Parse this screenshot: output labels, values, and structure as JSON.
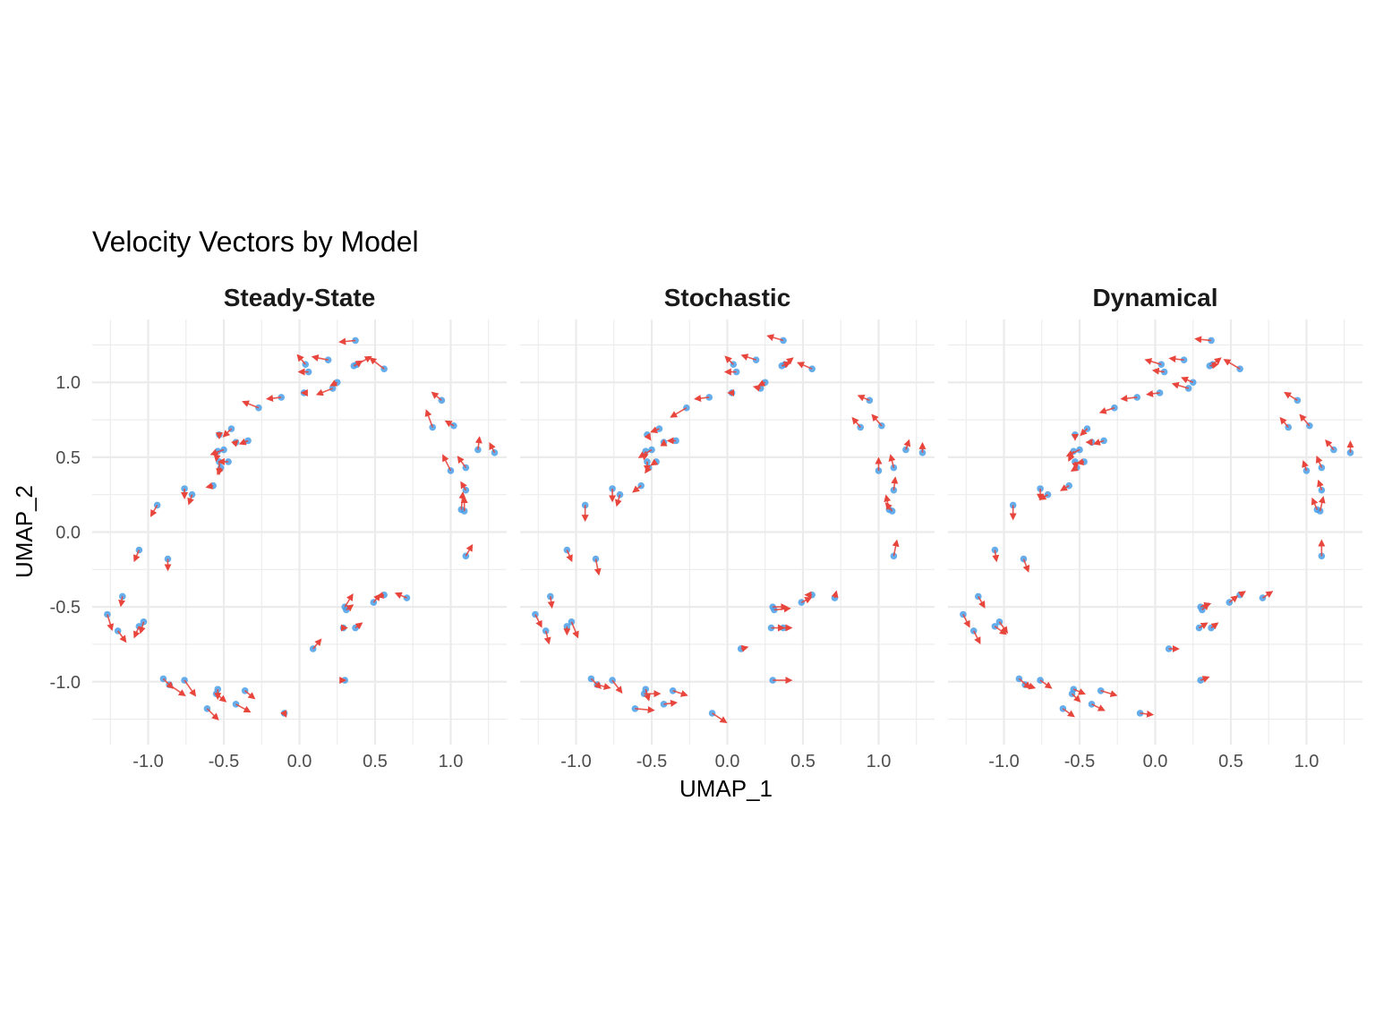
{
  "chart_data": {
    "type": "scatter",
    "title": "Velocity Vectors by Model",
    "xlabel": "UMAP_1",
    "ylabel": "UMAP_2",
    "xlim": [
      -1.37,
      1.37
    ],
    "ylim": [
      -1.42,
      1.42
    ],
    "x_ticks": [
      -1.0,
      -0.5,
      0.0,
      0.5,
      1.0
    ],
    "x_tick_labels": [
      "-1.0",
      "-0.5",
      "0.0",
      "0.5",
      "1.0"
    ],
    "y_ticks": [
      -1.0,
      -0.5,
      0.0,
      0.5,
      1.0
    ],
    "y_tick_labels": [
      "-1.0",
      "-0.5",
      "0.0",
      "0.5",
      "1.0"
    ],
    "grid": true,
    "point_color": "#4A9FE8",
    "arrow_color": "#E8453C",
    "points": [
      [
        0.37,
        1.28
      ],
      [
        0.38,
        1.12
      ],
      [
        0.36,
        1.11
      ],
      [
        0.56,
        1.09
      ],
      [
        0.19,
        1.15
      ],
      [
        0.04,
        1.12
      ],
      [
        0.06,
        1.07
      ],
      [
        0.25,
        1.0
      ],
      [
        0.22,
        0.96
      ],
      [
        0.03,
        0.93
      ],
      [
        -0.12,
        0.9
      ],
      [
        -0.27,
        0.83
      ],
      [
        -0.45,
        0.69
      ],
      [
        -0.53,
        0.65
      ],
      [
        -0.34,
        0.61
      ],
      [
        -0.42,
        0.6
      ],
      [
        -0.5,
        0.55
      ],
      [
        -0.54,
        0.54
      ],
      [
        -0.47,
        0.47
      ],
      [
        -0.53,
        0.47
      ],
      [
        -0.52,
        0.43
      ],
      [
        -0.57,
        0.31
      ],
      [
        -0.76,
        0.29
      ],
      [
        -0.71,
        0.25
      ],
      [
        -0.94,
        0.18
      ],
      [
        -1.06,
        -0.12
      ],
      [
        -0.87,
        -0.18
      ],
      [
        -1.17,
        -0.43
      ],
      [
        -1.27,
        -0.55
      ],
      [
        -1.03,
        -0.6
      ],
      [
        -1.06,
        -0.63
      ],
      [
        -1.2,
        -0.66
      ],
      [
        -0.9,
        -0.98
      ],
      [
        -0.86,
        -1.02
      ],
      [
        -0.76,
        -0.99
      ],
      [
        -0.54,
        -1.05
      ],
      [
        -0.36,
        -1.06
      ],
      [
        -0.55,
        -1.08
      ],
      [
        -0.42,
        -1.15
      ],
      [
        -0.61,
        -1.18
      ],
      [
        -0.1,
        -1.21
      ],
      [
        0.09,
        -0.78
      ],
      [
        0.3,
        -0.99
      ],
      [
        0.29,
        -0.64
      ],
      [
        0.37,
        -0.64
      ],
      [
        0.3,
        -0.5
      ],
      [
        0.31,
        -0.52
      ],
      [
        0.49,
        -0.47
      ],
      [
        0.56,
        -0.42
      ],
      [
        0.71,
        -0.44
      ],
      [
        0.94,
        0.88
      ],
      [
        1.02,
        0.71
      ],
      [
        0.88,
        0.7
      ],
      [
        1.18,
        0.55
      ],
      [
        1.29,
        0.53
      ],
      [
        1.1,
        0.43
      ],
      [
        1.0,
        0.41
      ],
      [
        1.1,
        0.28
      ],
      [
        1.07,
        0.15
      ],
      [
        1.09,
        0.14
      ],
      [
        1.1,
        -0.16
      ]
    ],
    "panels": [
      {
        "name": "Steady-State",
        "vectors": [
          [
            -0.1,
            -0.01
          ],
          [
            0.09,
            0.05
          ],
          [
            0.05,
            0.03
          ],
          [
            -0.09,
            0.07
          ],
          [
            -0.1,
            0.02
          ],
          [
            -0.05,
            0.06
          ],
          [
            -0.06,
            0.0
          ],
          [
            -0.04,
            -0.02
          ],
          [
            -0.1,
            -0.04
          ],
          [
            -0.01,
            0.0
          ],
          [
            -0.09,
            -0.01
          ],
          [
            -0.1,
            0.04
          ],
          [
            -0.05,
            -0.05
          ],
          [
            0.0,
            -0.02
          ],
          [
            -0.05,
            -0.02
          ],
          [
            0.01,
            0.01
          ],
          [
            -0.08,
            -0.03
          ],
          [
            -0.01,
            -0.06
          ],
          [
            -0.06,
            0.0
          ],
          [
            0.0,
            -0.08
          ],
          [
            -0.02,
            -0.04
          ],
          [
            -0.04,
            -0.01
          ],
          [
            0.0,
            -0.06
          ],
          [
            -0.02,
            -0.06
          ],
          [
            -0.04,
            -0.07
          ],
          [
            -0.03,
            -0.07
          ],
          [
            0.0,
            -0.07
          ],
          [
            -0.01,
            -0.06
          ],
          [
            0.03,
            -0.1
          ],
          [
            -0.02,
            -0.07
          ],
          [
            -0.03,
            -0.07
          ],
          [
            0.05,
            -0.07
          ],
          [
            0.06,
            -0.06
          ],
          [
            0.1,
            -0.07
          ],
          [
            0.07,
            -0.1
          ],
          [
            0.0,
            -0.06
          ],
          [
            0.06,
            -0.05
          ],
          [
            0.06,
            -0.05
          ],
          [
            0.09,
            -0.05
          ],
          [
            0.07,
            -0.07
          ],
          [
            0.01,
            -0.02
          ],
          [
            0.05,
            0.06
          ],
          [
            0.0,
            0.0
          ],
          [
            0.02,
            0.0
          ],
          [
            0.04,
            0.03
          ],
          [
            0.05,
            0.08
          ],
          [
            0.04,
            0.03
          ],
          [
            0.04,
            0.05
          ],
          [
            -0.04,
            -0.01
          ],
          [
            -0.07,
            0.03
          ],
          [
            -0.06,
            0.05
          ],
          [
            -0.05,
            0.03
          ],
          [
            -0.04,
            0.11
          ],
          [
            0.01,
            0.08
          ],
          [
            -0.03,
            0.06
          ],
          [
            -0.05,
            0.07
          ],
          [
            -0.05,
            0.1
          ],
          [
            -0.03,
            0.05
          ],
          [
            0.01,
            0.11
          ],
          [
            0.0,
            0.09
          ],
          [
            0.04,
            0.07
          ]
        ]
      },
      {
        "name": "Stochastic",
        "vectors": [
          [
            -0.1,
            0.03
          ],
          [
            0.05,
            0.04
          ],
          [
            0.05,
            0.02
          ],
          [
            -0.09,
            0.04
          ],
          [
            -0.09,
            0.03
          ],
          [
            -0.05,
            0.05
          ],
          [
            -0.07,
            -0.0
          ],
          [
            -0.04,
            -0.02
          ],
          [
            -0.04,
            0.01
          ],
          [
            -0.02,
            0.0
          ],
          [
            -0.09,
            -0.01
          ],
          [
            -0.1,
            -0.06
          ],
          [
            -0.05,
            -0.02
          ],
          [
            0.02,
            -0.03
          ],
          [
            -0.05,
            -0.0
          ],
          [
            0.0,
            0.01
          ],
          [
            -0.08,
            -0.05
          ],
          [
            -0.01,
            -0.05
          ],
          [
            -0.03,
            -0.02
          ],
          [
            0.0,
            -0.06
          ],
          [
            -0.02,
            -0.03
          ],
          [
            -0.05,
            -0.04
          ],
          [
            0.0,
            -0.08
          ],
          [
            -0.02,
            -0.07
          ],
          [
            0.0,
            -0.1
          ],
          [
            0.03,
            -0.07
          ],
          [
            0.02,
            -0.1
          ],
          [
            0.01,
            -0.07
          ],
          [
            0.04,
            -0.08
          ],
          [
            0.04,
            -0.1
          ],
          [
            0.0,
            -0.05
          ],
          [
            0.02,
            -0.08
          ],
          [
            0.06,
            -0.06
          ],
          [
            0.08,
            -0.02
          ],
          [
            0.06,
            -0.08
          ],
          [
            0.02,
            -0.07
          ],
          [
            0.09,
            -0.03
          ],
          [
            0.1,
            -0.0
          ],
          [
            0.08,
            0.01
          ],
          [
            0.12,
            -0.01
          ],
          [
            0.09,
            -0.06
          ],
          [
            0.04,
            0.01
          ],
          [
            0.12,
            0.0
          ],
          [
            0.08,
            0.0
          ],
          [
            0.05,
            0.0
          ],
          [
            0.09,
            0.0
          ],
          [
            0.1,
            0.01
          ],
          [
            0.06,
            0.03
          ],
          [
            -0.04,
            0.0
          ],
          [
            0.01,
            0.04
          ],
          [
            -0.07,
            0.03
          ],
          [
            -0.06,
            0.07
          ],
          [
            -0.05,
            0.06
          ],
          [
            0.02,
            0.06
          ],
          [
            0.0,
            0.06
          ],
          [
            -0.02,
            0.08
          ],
          [
            0.0,
            0.08
          ],
          [
            0.01,
            0.08
          ],
          [
            -0.02,
            0.09
          ],
          [
            -0.04,
            0.05
          ],
          [
            0.02,
            0.1
          ]
        ]
      },
      {
        "name": "Dynamical",
        "vectors": [
          [
            -0.1,
            0.01
          ],
          [
            0.05,
            0.04
          ],
          [
            0.05,
            0.01
          ],
          [
            -0.1,
            0.06
          ],
          [
            -0.09,
            0.01
          ],
          [
            -0.1,
            0.03
          ],
          [
            -0.07,
            0.01
          ],
          [
            -0.07,
            0.03
          ],
          [
            -0.1,
            0.03
          ],
          [
            -0.08,
            -0.01
          ],
          [
            -0.1,
            -0.01
          ],
          [
            -0.09,
            -0.03
          ],
          [
            -0.04,
            -0.04
          ],
          [
            0.0,
            -0.03
          ],
          [
            -0.06,
            -0.02
          ],
          [
            -0.03,
            -0.0
          ],
          [
            -0.08,
            -0.04
          ],
          [
            -0.03,
            -0.06
          ],
          [
            -0.04,
            -0.01
          ],
          [
            0.01,
            -0.04
          ],
          [
            -0.03,
            -0.02
          ],
          [
            -0.05,
            -0.03
          ],
          [
            0.0,
            -0.07
          ],
          [
            -0.05,
            -0.03
          ],
          [
            0.0,
            -0.09
          ],
          [
            0.01,
            -0.07
          ],
          [
            0.03,
            -0.08
          ],
          [
            0.04,
            -0.07
          ],
          [
            0.04,
            -0.08
          ],
          [
            0.05,
            -0.07
          ],
          [
            0.07,
            -0.05
          ],
          [
            0.04,
            -0.08
          ],
          [
            0.07,
            -0.06
          ],
          [
            0.06,
            -0.02
          ],
          [
            0.07,
            -0.05
          ],
          [
            0.07,
            -0.03
          ],
          [
            0.1,
            -0.03
          ],
          [
            0.05,
            -0.05
          ],
          [
            0.08,
            -0.04
          ],
          [
            0.07,
            -0.05
          ],
          [
            0.08,
            -0.01
          ],
          [
            0.06,
            0.0
          ],
          [
            0.05,
            0.02
          ],
          [
            0.05,
            0.03
          ],
          [
            0.04,
            0.03
          ],
          [
            0.06,
            0.02
          ],
          [
            0.04,
            0.04
          ],
          [
            0.05,
            0.04
          ],
          [
            0.03,
            0.02
          ],
          [
            0.06,
            0.04
          ],
          [
            -0.08,
            0.05
          ],
          [
            -0.06,
            0.07
          ],
          [
            -0.05,
            0.06
          ],
          [
            -0.05,
            0.06
          ],
          [
            -0.0,
            0.07
          ],
          [
            -0.03,
            0.07
          ],
          [
            -0.02,
            0.06
          ],
          [
            -0.02,
            0.06
          ],
          [
            -0.03,
            0.07
          ],
          [
            0.02,
            0.09
          ],
          [
            0.0,
            0.1
          ]
        ]
      }
    ]
  }
}
